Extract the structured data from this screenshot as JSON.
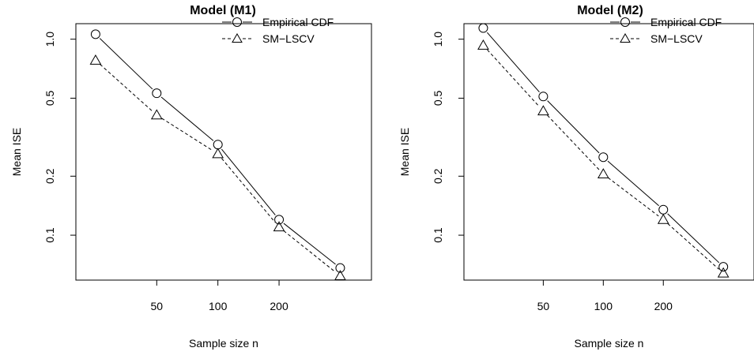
{
  "chart_data": [
    {
      "type": "line",
      "title": "Model (M1)",
      "xlabel": "Sample size n",
      "ylabel": "Mean ISE",
      "x_scale": "log",
      "y_scale": "log",
      "x_ticks": [
        50,
        100,
        200
      ],
      "y_ticks": [
        0.1,
        0.2,
        0.5,
        1.0
      ],
      "y_tick_labels": [
        "0.1",
        "0.2",
        "0.5",
        "1.0"
      ],
      "xlim": [
        20,
        570
      ],
      "ylim": [
        0.059,
        1.2
      ],
      "legend_position": "top-right",
      "x": [
        25,
        50,
        100,
        200,
        400
      ],
      "series": [
        {
          "name": "Empirical CDF",
          "marker": "circle",
          "line": "solid",
          "values": [
            1.06,
            0.53,
            0.29,
            0.12,
            0.068
          ]
        },
        {
          "name": "SM−LSCV",
          "marker": "triangle",
          "line": "dashed",
          "values": [
            0.78,
            0.41,
            0.26,
            0.11,
            0.062
          ]
        }
      ]
    },
    {
      "type": "line",
      "title": "Model (M2)",
      "xlabel": "Sample size n",
      "ylabel": "Mean ISE",
      "x_scale": "log",
      "y_scale": "log",
      "x_ticks": [
        50,
        100,
        200
      ],
      "y_ticks": [
        0.1,
        0.2,
        0.5,
        1.0
      ],
      "y_tick_labels": [
        "0.1",
        "0.2",
        "0.5",
        "1.0"
      ],
      "xlim": [
        20,
        570
      ],
      "ylim": [
        0.059,
        1.2
      ],
      "legend_position": "top-right",
      "x": [
        25,
        50,
        100,
        200,
        400
      ],
      "series": [
        {
          "name": "Empirical CDF",
          "marker": "circle",
          "line": "solid",
          "values": [
            1.14,
            0.51,
            0.25,
            0.135,
            0.069
          ]
        },
        {
          "name": "SM−LSCV",
          "marker": "triangle",
          "line": "dashed",
          "values": [
            0.93,
            0.43,
            0.205,
            0.12,
            0.064
          ]
        }
      ]
    }
  ]
}
